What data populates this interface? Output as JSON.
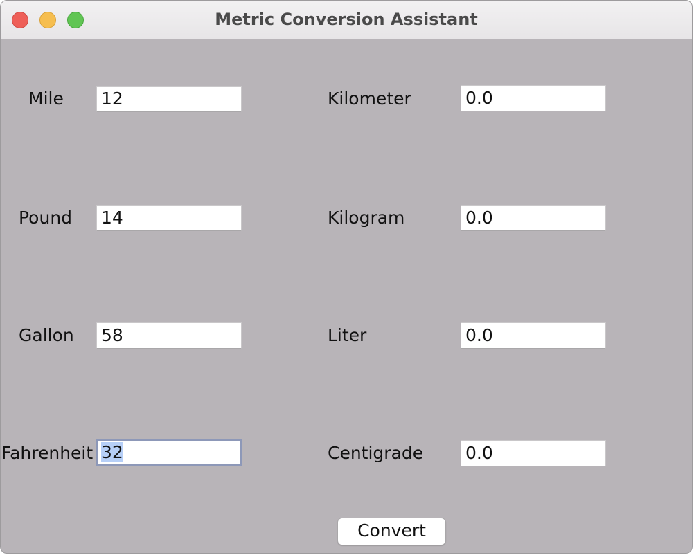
{
  "window": {
    "title": "Metric Conversion Assistant"
  },
  "rows": [
    {
      "from_label": "Mile",
      "from_value": "12",
      "to_label": "Kilometer",
      "to_value": "0.0"
    },
    {
      "from_label": "Pound",
      "from_value": "14",
      "to_label": "Kilogram",
      "to_value": "0.0"
    },
    {
      "from_label": "Gallon",
      "from_value": "58",
      "to_label": "Liter",
      "to_value": "0.0"
    },
    {
      "from_label": "Fahrenheit",
      "from_value": "32",
      "to_label": "Centigrade",
      "to_value": "0.0"
    }
  ],
  "convert_button_label": "Convert",
  "colors": {
    "window_background": "#b8b4b8",
    "selection_highlight": "#b6cff7"
  }
}
